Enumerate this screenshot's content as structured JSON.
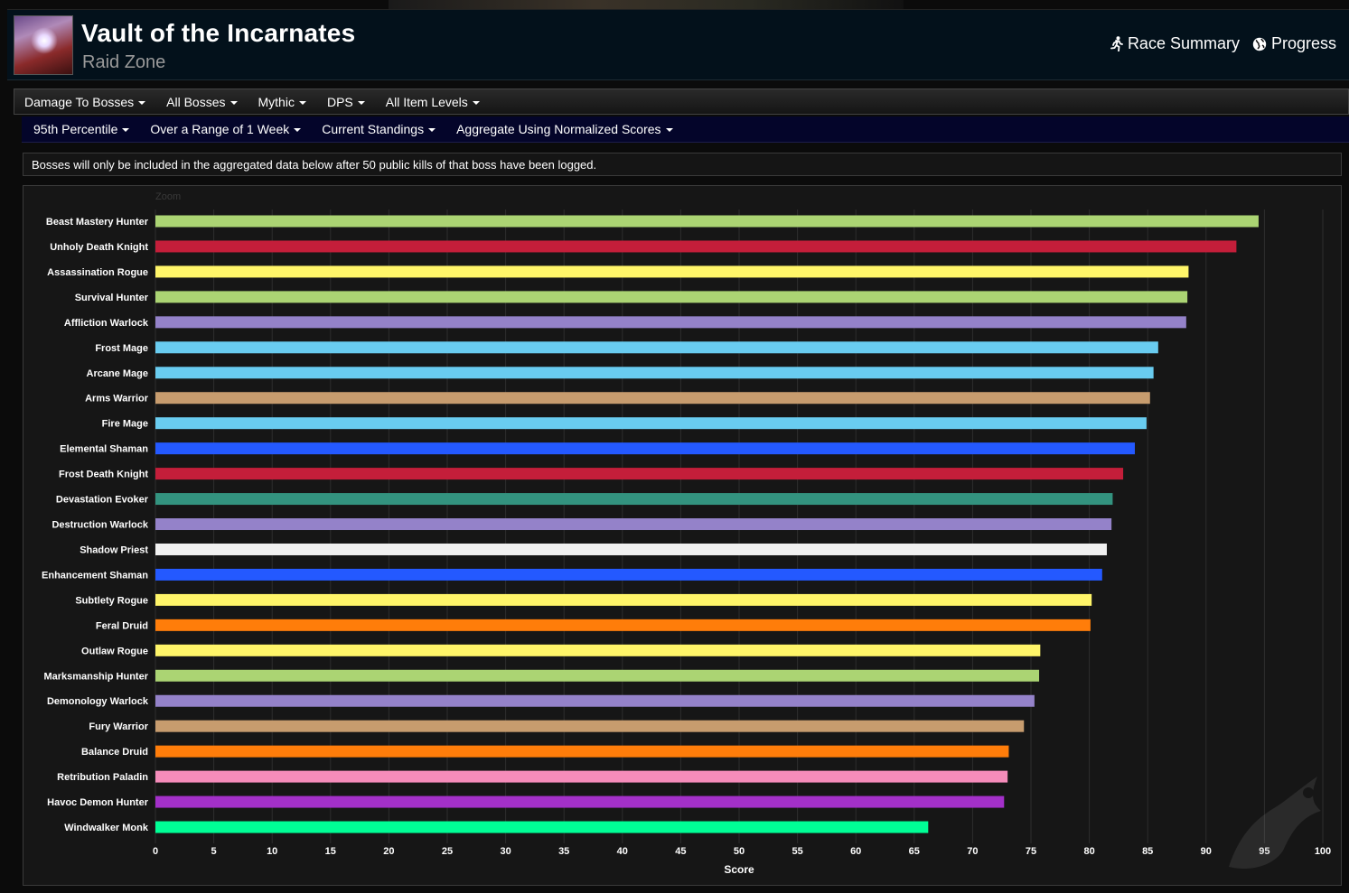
{
  "header": {
    "title": "Vault of the Incarnates",
    "subtitle": "Raid Zone",
    "links": [
      {
        "label": "Race Summary",
        "icon": "running-person-icon"
      },
      {
        "label": "Progress",
        "icon": "globe-icon"
      }
    ]
  },
  "filters_row1": [
    {
      "label": "Damage To Bosses"
    },
    {
      "label": "All Bosses"
    },
    {
      "label": "Mythic"
    },
    {
      "label": "DPS"
    },
    {
      "label": "All Item Levels"
    }
  ],
  "filters_row2": [
    {
      "label": "95th Percentile"
    },
    {
      "label": "Over a Range of 1 Week"
    },
    {
      "label": "Current Standings"
    },
    {
      "label": "Aggregate Using Normalized Scores"
    }
  ],
  "notice": "Bosses will only be included in the aggregated data below after 50 public kills of that boss have been logged.",
  "chart_data": {
    "type": "bar",
    "orientation": "horizontal",
    "zoom_label": "Zoom",
    "xlabel": "Score",
    "xlim": [
      0,
      100
    ],
    "xticks": [
      "0",
      "5",
      "10",
      "15",
      "20",
      "25",
      "30",
      "35",
      "40",
      "45",
      "50",
      "55",
      "60",
      "65",
      "70",
      "75",
      "80",
      "85",
      "90",
      "95",
      "100"
    ],
    "grid": true,
    "categories": [
      "Beast Mastery Hunter",
      "Unholy Death Knight",
      "Assassination Rogue",
      "Survival Hunter",
      "Affliction Warlock",
      "Frost Mage",
      "Arcane Mage",
      "Arms Warrior",
      "Fire Mage",
      "Elemental Shaman",
      "Frost Death Knight",
      "Devastation Evoker",
      "Destruction Warlock",
      "Shadow Priest",
      "Enhancement Shaman",
      "Subtlety Rogue",
      "Feral Druid",
      "Outlaw Rogue",
      "Marksmanship Hunter",
      "Demonology Warlock",
      "Fury Warrior",
      "Balance Druid",
      "Retribution Paladin",
      "Havoc Demon Hunter",
      "Windwalker Monk"
    ],
    "values": [
      94.5,
      92.6,
      88.5,
      88.4,
      88.3,
      85.9,
      85.5,
      85.2,
      84.9,
      83.9,
      82.9,
      82.0,
      81.9,
      81.5,
      81.1,
      80.2,
      80.1,
      75.8,
      75.7,
      75.3,
      74.4,
      73.1,
      73.0,
      72.7,
      66.2
    ],
    "colors": [
      "#abd473",
      "#c41e3a",
      "#fff569",
      "#abd473",
      "#9482c9",
      "#69ccf0",
      "#69ccf0",
      "#c79c6e",
      "#69ccf0",
      "#2459ff",
      "#c41e3a",
      "#33937f",
      "#9482c9",
      "#f0f0f0",
      "#2459ff",
      "#fff569",
      "#ff7d0a",
      "#fff569",
      "#abd473",
      "#9482c9",
      "#c79c6e",
      "#ff7d0a",
      "#f58cba",
      "#a330c9",
      "#00ff96"
    ]
  }
}
